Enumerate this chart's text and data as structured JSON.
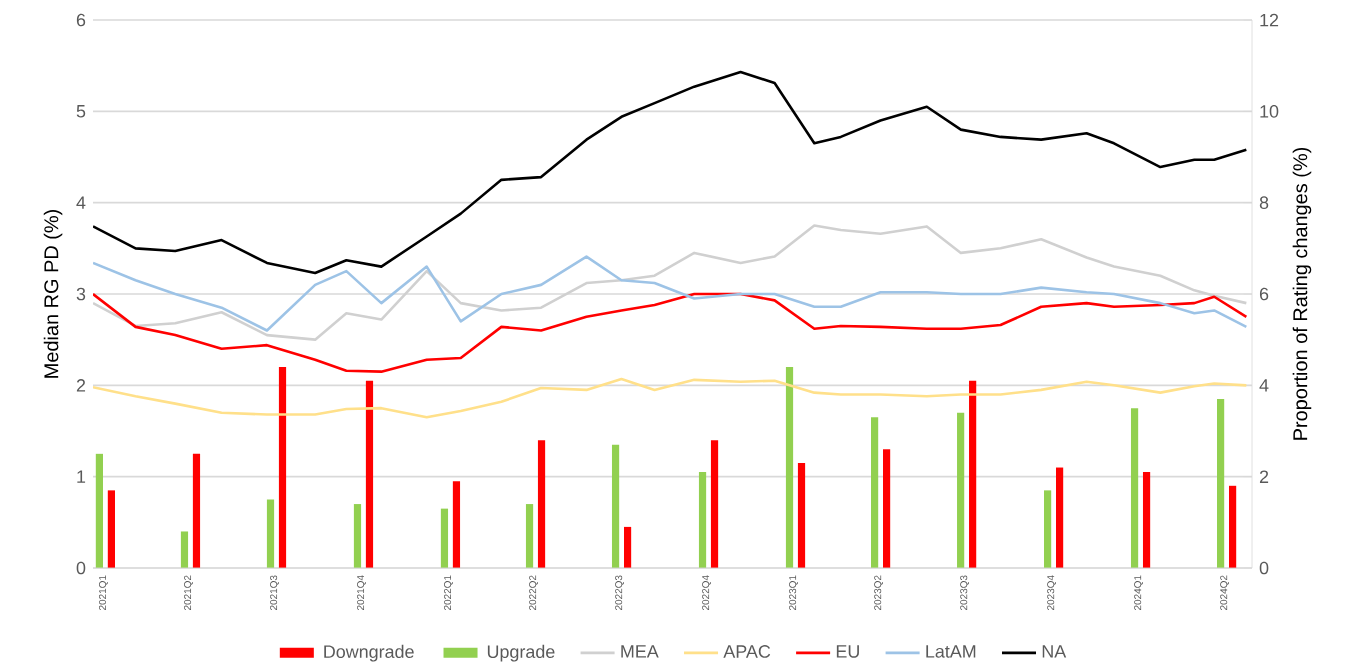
{
  "chart_data": {
    "type": "line",
    "xlim": [
      "2020-12-21",
      "2024-04-30"
    ],
    "xticks": [
      {
        "value": "2021-01-01",
        "label": "2021Q1"
      },
      {
        "value": "2021-04-01",
        "label": "2021Q2"
      },
      {
        "value": "2021-07-01",
        "label": "2021Q3"
      },
      {
        "value": "2021-10-01",
        "label": "2021Q4"
      },
      {
        "value": "2022-01-01",
        "label": "2022Q1"
      },
      {
        "value": "2022-04-01",
        "label": "2022Q2"
      },
      {
        "value": "2022-07-01",
        "label": "2022Q3"
      },
      {
        "value": "2022-10-01",
        "label": "2022Q4"
      },
      {
        "value": "2023-01-01",
        "label": "2023Q1"
      },
      {
        "value": "2023-04-01",
        "label": "2023Q2"
      },
      {
        "value": "2023-07-01",
        "label": "2023Q3"
      },
      {
        "value": "2023-10-01",
        "label": "2023Q4"
      },
      {
        "value": "2024-01-01",
        "label": "2024Q1"
      },
      {
        "value": "2024-04-01",
        "label": "2024Q2"
      }
    ],
    "ylabel": "Median RG PD (%)",
    "y2label": "Proportion of Rating changes (%)",
    "ylim": [
      0,
      6
    ],
    "yticks": [
      0,
      1,
      2,
      3,
      4,
      5,
      6
    ],
    "y2lim": [
      0,
      12
    ],
    "y2ticks": [
      0,
      2,
      4,
      6,
      8,
      10,
      12
    ],
    "grid": "y",
    "legend": "bottom",
    "series": [
      {
        "name": "Downgrade",
        "type": "bar",
        "axis": "y2",
        "color": "#ff0000",
        "x": [
          "2021-01-01",
          "2021-04-01",
          "2021-07-01",
          "2021-10-01",
          "2022-01-01",
          "2022-04-01",
          "2022-07-01",
          "2022-10-01",
          "2023-01-01",
          "2023-04-01",
          "2023-07-01",
          "2023-10-01",
          "2024-01-01",
          "2024-04-01"
        ],
        "values": [
          1.7,
          2.5,
          4.4,
          4.1,
          1.9,
          2.8,
          0.9,
          2.8,
          2.3,
          2.6,
          4.1,
          2.2,
          2.1,
          1.8
        ]
      },
      {
        "name": "Upgrade",
        "type": "bar",
        "axis": "y2",
        "color": "#92d050",
        "x": [
          "2021-01-01",
          "2021-04-01",
          "2021-07-01",
          "2021-10-01",
          "2022-01-01",
          "2022-04-01",
          "2022-07-01",
          "2022-10-01",
          "2023-01-01",
          "2023-04-01",
          "2023-07-01",
          "2023-10-01",
          "2024-01-01",
          "2024-04-01"
        ],
        "values": [
          2.5,
          0.8,
          1.5,
          1.4,
          1.3,
          1.4,
          2.7,
          2.1,
          4.4,
          3.3,
          3.4,
          1.7,
          3.5,
          3.7
        ]
      },
      {
        "name": "MEA",
        "color": "#d0d0d0",
        "x": [
          "2020-12-21",
          "2021-02-04",
          "2021-03-18",
          "2021-05-06",
          "2021-06-23",
          "2021-08-13",
          "2021-09-15",
          "2021-10-22",
          "2021-12-09",
          "2022-01-14",
          "2022-02-26",
          "2022-04-09",
          "2022-05-27",
          "2022-07-03",
          "2022-08-07",
          "2022-09-18",
          "2022-11-06",
          "2022-12-12",
          "2023-01-23",
          "2023-02-20",
          "2023-04-03",
          "2023-05-22",
          "2023-06-27",
          "2023-08-08",
          "2023-09-20",
          "2023-11-07",
          "2023-12-06",
          "2024-01-24",
          "2024-02-29",
          "2024-03-21",
          "2024-04-24"
        ],
        "values": [
          2.9,
          2.65,
          2.68,
          2.8,
          2.55,
          2.5,
          2.79,
          2.72,
          3.25,
          2.9,
          2.82,
          2.85,
          3.12,
          3.15,
          3.2,
          3.45,
          3.34,
          3.41,
          3.75,
          3.7,
          3.66,
          3.74,
          3.45,
          3.5,
          3.6,
          3.4,
          3.3,
          3.2,
          3.04,
          2.98,
          2.9
        ]
      },
      {
        "name": "APAC",
        "color": "#ffe08a",
        "x": [
          "2020-12-21",
          "2021-02-04",
          "2021-03-18",
          "2021-05-06",
          "2021-06-23",
          "2021-08-13",
          "2021-09-15",
          "2021-10-22",
          "2021-12-09",
          "2022-01-14",
          "2022-02-26",
          "2022-04-09",
          "2022-05-27",
          "2022-07-03",
          "2022-08-07",
          "2022-09-18",
          "2022-11-06",
          "2022-12-12",
          "2023-01-23",
          "2023-02-20",
          "2023-04-03",
          "2023-05-22",
          "2023-06-27",
          "2023-08-08",
          "2023-09-20",
          "2023-11-07",
          "2023-12-06",
          "2024-01-24",
          "2024-02-29",
          "2024-03-21",
          "2024-04-24"
        ],
        "values": [
          1.98,
          1.88,
          1.8,
          1.7,
          1.68,
          1.68,
          1.74,
          1.75,
          1.65,
          1.72,
          1.82,
          1.97,
          1.95,
          2.07,
          1.95,
          2.06,
          2.04,
          2.05,
          1.92,
          1.9,
          1.9,
          1.88,
          1.9,
          1.9,
          1.95,
          2.04,
          2.0,
          1.92,
          1.99,
          2.02,
          2.0
        ]
      },
      {
        "name": "EU",
        "color": "#ff0000",
        "x": [
          "2020-12-21",
          "2021-02-04",
          "2021-03-18",
          "2021-05-06",
          "2021-06-23",
          "2021-08-13",
          "2021-09-15",
          "2021-10-22",
          "2021-12-09",
          "2022-01-14",
          "2022-02-26",
          "2022-04-09",
          "2022-05-27",
          "2022-07-03",
          "2022-08-07",
          "2022-09-18",
          "2022-11-06",
          "2022-12-12",
          "2023-01-23",
          "2023-02-20",
          "2023-04-03",
          "2023-05-22",
          "2023-06-27",
          "2023-08-08",
          "2023-09-20",
          "2023-11-07",
          "2023-12-06",
          "2024-01-24",
          "2024-02-29",
          "2024-03-21",
          "2024-04-24"
        ],
        "values": [
          3.0,
          2.64,
          2.55,
          2.4,
          2.44,
          2.28,
          2.16,
          2.15,
          2.28,
          2.3,
          2.64,
          2.6,
          2.75,
          2.82,
          2.88,
          3.0,
          3.0,
          2.93,
          2.62,
          2.65,
          2.64,
          2.62,
          2.62,
          2.66,
          2.86,
          2.9,
          2.86,
          2.88,
          2.9,
          2.97,
          2.75
        ]
      },
      {
        "name": "LatAM",
        "color": "#9dc3e6",
        "x": [
          "2020-12-21",
          "2021-02-04",
          "2021-03-18",
          "2021-05-06",
          "2021-06-23",
          "2021-08-13",
          "2021-09-15",
          "2021-10-22",
          "2021-12-09",
          "2022-01-14",
          "2022-02-26",
          "2022-04-09",
          "2022-05-27",
          "2022-07-03",
          "2022-08-07",
          "2022-09-18",
          "2022-11-06",
          "2022-12-12",
          "2023-01-23",
          "2023-02-20",
          "2023-04-03",
          "2023-05-22",
          "2023-06-27",
          "2023-08-08",
          "2023-09-20",
          "2023-11-07",
          "2023-12-06",
          "2024-01-24",
          "2024-02-29",
          "2024-03-21",
          "2024-04-24"
        ],
        "values": [
          3.34,
          3.15,
          3.0,
          2.85,
          2.6,
          3.1,
          3.25,
          2.9,
          3.3,
          2.7,
          3.0,
          3.1,
          3.41,
          3.15,
          3.12,
          2.95,
          3.0,
          3.0,
          2.86,
          2.86,
          3.02,
          3.02,
          3.0,
          3.0,
          3.07,
          3.02,
          3.0,
          2.9,
          2.79,
          2.82,
          2.64
        ]
      },
      {
        "name": "NA",
        "color": "#000000",
        "x": [
          "2020-12-21",
          "2021-02-04",
          "2021-03-18",
          "2021-05-06",
          "2021-06-23",
          "2021-08-13",
          "2021-09-15",
          "2021-10-22",
          "2021-12-09",
          "2022-01-14",
          "2022-02-26",
          "2022-04-09",
          "2022-05-27",
          "2022-07-03",
          "2022-08-07",
          "2022-09-18",
          "2022-11-06",
          "2022-12-12",
          "2023-01-23",
          "2023-02-20",
          "2023-04-03",
          "2023-05-22",
          "2023-06-27",
          "2023-08-08",
          "2023-09-20",
          "2023-11-07",
          "2023-12-06",
          "2024-01-24",
          "2024-02-29",
          "2024-03-21",
          "2024-04-24"
        ],
        "values": [
          3.74,
          3.5,
          3.47,
          3.59,
          3.34,
          3.23,
          3.37,
          3.3,
          3.63,
          3.88,
          4.25,
          4.28,
          4.69,
          4.94,
          5.09,
          5.27,
          5.43,
          5.31,
          4.65,
          4.72,
          4.9,
          5.05,
          4.8,
          4.72,
          4.69,
          4.76,
          4.65,
          4.39,
          4.47,
          4.47,
          4.58
        ]
      }
    ]
  }
}
